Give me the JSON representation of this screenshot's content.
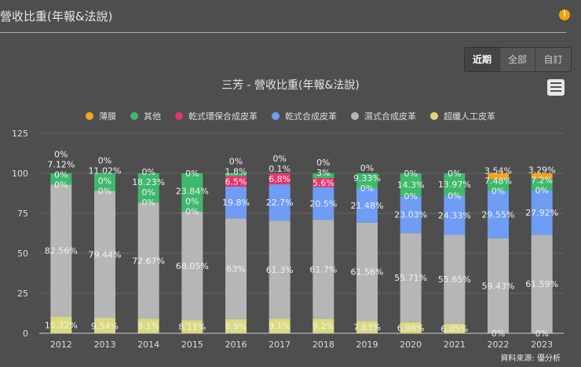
{
  "header": {
    "title": "營收比重(年報&法說)",
    "info_icon": "info-icon"
  },
  "range_buttons": [
    "近期",
    "全部",
    "自訂"
  ],
  "active_range": "近期",
  "source": "資料來源: 優分析",
  "chart_data": {
    "type": "bar",
    "stacked": true,
    "title": "三芳 - 營收比重(年報&法說)",
    "categories": [
      "2012",
      "2013",
      "2014",
      "2015",
      "2016",
      "2017",
      "2018",
      "2019",
      "2020",
      "2021",
      "2022",
      "2023"
    ],
    "ylim": [
      0,
      125
    ],
    "yticks": [
      0,
      25,
      50,
      75,
      100,
      125
    ],
    "grid": true,
    "legend": "top",
    "series": [
      {
        "name": "薄膜",
        "color": "#f7a21b",
        "values": [
          0,
          0,
          0,
          0,
          0,
          0,
          0,
          0,
          0,
          0,
          3.54,
          3.29
        ],
        "labels": [
          "0%",
          "0%",
          "0%",
          "0%",
          "0%",
          "0%",
          "0%",
          "0%",
          "0%",
          "0%",
          "3.54%",
          "3.29%"
        ]
      },
      {
        "name": "其他",
        "color": "#3dba6b",
        "values": [
          7.12,
          11.02,
          18.23,
          23.84,
          1.8,
          0.1,
          3,
          9.33,
          14.3,
          13.97,
          7.48,
          7.2
        ],
        "labels": [
          "7.12%",
          "11.02%",
          "18.23%",
          "23.84%",
          "1.8%",
          "0.1%",
          "3%",
          "9.33%",
          "14.3%",
          "13.97%",
          "7.48%",
          "7.2%"
        ]
      },
      {
        "name": "乾式環保合成皮革",
        "color": "#e8336b",
        "values": [
          0,
          0,
          0,
          0,
          6.5,
          6.8,
          5.6,
          0,
          0,
          0,
          0,
          0
        ],
        "labels": [
          "0%",
          "0%",
          "0%",
          "0%",
          "6.5%",
          "6.8%",
          "5.6%",
          "0%",
          "0%",
          "0%",
          "0%",
          "0%"
        ]
      },
      {
        "name": "乾式合成皮革",
        "color": "#6f9cf5",
        "values": [
          0,
          0,
          0,
          0,
          19.8,
          22.7,
          20.5,
          21.48,
          23.03,
          24.33,
          29.55,
          27.92
        ],
        "labels": [
          "0%",
          "0%",
          "0%",
          "0%",
          "19.8%",
          "22.7%",
          "20.5%",
          "21.48%",
          "23.03%",
          "24.33%",
          "29.55%",
          "27.92%"
        ]
      },
      {
        "name": "濕式合成皮革",
        "color": "#b6b6b6",
        "values": [
          82.56,
          79.44,
          72.67,
          68.05,
          63,
          61.3,
          61.7,
          61.56,
          55.71,
          55.65,
          59.43,
          61.59
        ],
        "labels": [
          "82.56%",
          "79.44%",
          "72.67%",
          "68.05%",
          "63%",
          "61.3%",
          "61.7%",
          "61.56%",
          "55.71%",
          "55.65%",
          "59.43%",
          "61.59%"
        ]
      },
      {
        "name": "超纖人工皮革",
        "color": "#dbd97c",
        "values": [
          10.32,
          9.54,
          9.1,
          8.11,
          8.9,
          9.1,
          9.2,
          7.63,
          6.96,
          6.05,
          0,
          0
        ],
        "labels": [
          "10.32%",
          "9.54%",
          "9.1%",
          "8.11%",
          "8.9%",
          "9.1%",
          "9.2%",
          "7.63%",
          "6.96%",
          "6.05%",
          "0%",
          "0%"
        ]
      }
    ]
  }
}
